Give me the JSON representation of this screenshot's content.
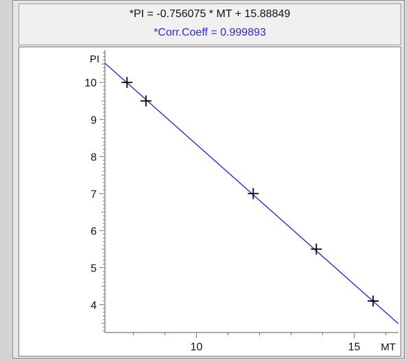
{
  "header": {
    "equation": "*PI = -0.756075 * MT + 15.88849",
    "corr": "*Corr.Coeff = 0.999893"
  },
  "colors": {
    "fit_line": "#2a2ae0",
    "markers": "#000000",
    "corr_text": "#2828e6"
  },
  "chart_data": {
    "type": "scatter",
    "xlabel": "MT",
    "ylabel": "PI",
    "xlim": [
      7.1,
      16.4
    ],
    "ylim": [
      3.25,
      10.8
    ],
    "x_ticks": [
      10,
      15
    ],
    "y_ticks": [
      4,
      5,
      6,
      7,
      8,
      9,
      10
    ],
    "grid": false,
    "points": [
      {
        "x": 7.8,
        "y": 10.0
      },
      {
        "x": 8.4,
        "y": 9.5
      },
      {
        "x": 11.8,
        "y": 7.0
      },
      {
        "x": 13.8,
        "y": 5.5
      },
      {
        "x": 15.6,
        "y": 4.1
      }
    ],
    "fit": {
      "slope": -0.756075,
      "intercept": 15.88849
    }
  }
}
